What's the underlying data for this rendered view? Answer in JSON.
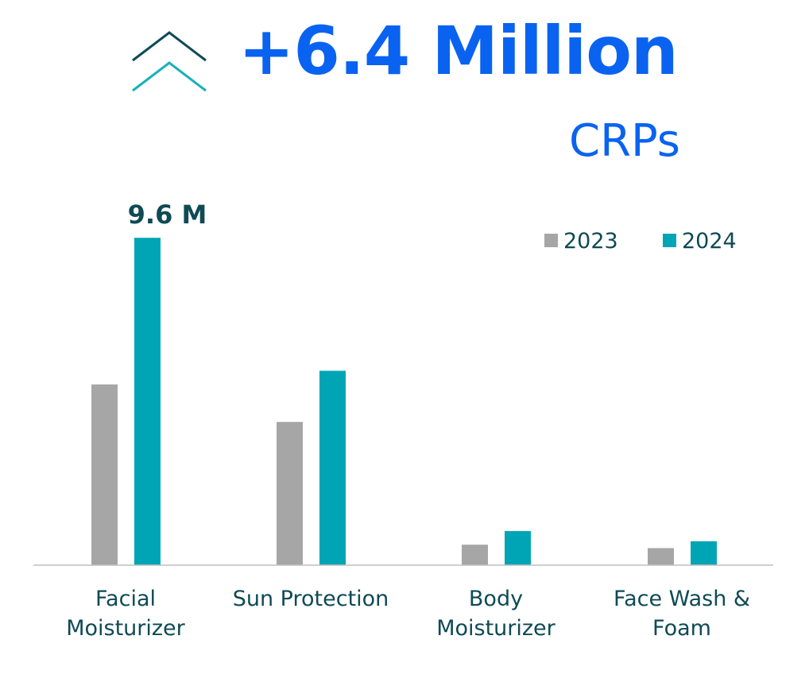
{
  "headline": {
    "value": "+6.4 Million",
    "unit": "CRPs",
    "icon": "double-chevron-up-icon"
  },
  "colors": {
    "headline": "#0a63f0",
    "text": "#0f4a55",
    "series_2023": "#a6a6a6",
    "series_2024": "#00a5b5",
    "axis": "#bfbfbf",
    "icon_dark": "#0f4a55",
    "icon_light": "#1ab0ba"
  },
  "chart_data": {
    "type": "bar",
    "categories": [
      [
        "Facial",
        "Moisturizer"
      ],
      [
        "Sun Protection"
      ],
      [
        "Body",
        "Moisturizer"
      ],
      [
        "Face Wash &",
        "Foam"
      ]
    ],
    "series": [
      {
        "name": "2023",
        "values": [
          5.3,
          4.2,
          0.6,
          0.5
        ]
      },
      {
        "name": "2024",
        "values": [
          9.6,
          5.7,
          1.0,
          0.7
        ]
      }
    ],
    "data_labels": [
      {
        "series": 1,
        "category": 0,
        "text": "9.6  M"
      }
    ],
    "ylim": [
      0,
      10
    ],
    "grid": false,
    "legend_position": "top-right"
  }
}
